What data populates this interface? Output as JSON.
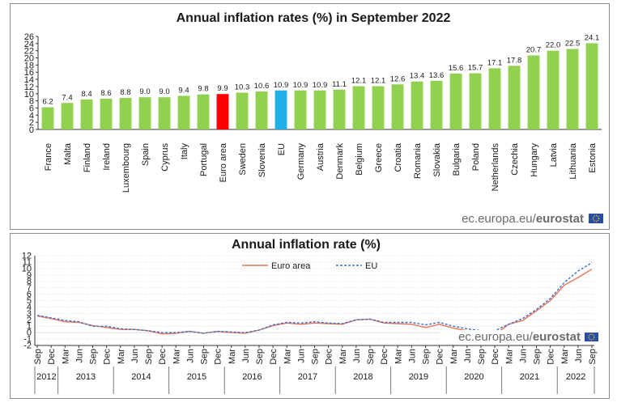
{
  "brand": {
    "source_host": "ec.europa.eu/",
    "source_name": "eurostat"
  },
  "colors": {
    "bar_default": "#92d050",
    "bar_euro_area": "#ff0000",
    "bar_eu": "#1fb0e6",
    "line_euro_area": "#e8735a",
    "line_eu": "#3f6fc4"
  },
  "chart_data": [
    {
      "type": "bar",
      "title": "Annual inflation rates (%) in  September 2022",
      "ylim": [
        0,
        26
      ],
      "yticks": [
        0,
        2,
        4,
        6,
        8,
        10,
        12,
        14,
        16,
        18,
        20,
        22,
        24,
        26
      ],
      "categories": [
        "France",
        "Malta",
        "Finland",
        "Ireland",
        "Luxembourg",
        "Spain",
        "Cyprus",
        "Italy",
        "Portugal",
        "Euro area",
        "Sweden",
        "Slovenia",
        "EU",
        "Germany",
        "Austria",
        "Denmark",
        "Belgium",
        "Greece",
        "Croatia",
        "Romania",
        "Slovakia",
        "Bulgaria",
        "Poland",
        "Netherlands",
        "Czechia",
        "Hungary",
        "Latvia",
        "Lithuania",
        "Estonia"
      ],
      "values": [
        6.2,
        7.4,
        8.4,
        8.6,
        8.8,
        9.0,
        9.0,
        9.4,
        9.8,
        9.9,
        10.3,
        10.6,
        10.9,
        10.9,
        10.9,
        11.1,
        12.1,
        12.1,
        12.6,
        13.4,
        13.6,
        15.6,
        15.7,
        17.1,
        17.8,
        20.7,
        22.0,
        22.5,
        24.1
      ],
      "value_labels": [
        "6.2",
        "7.4",
        "8.4",
        "8.6",
        "8.8",
        "9.0",
        "9.0",
        "9.4",
        "9.8",
        "9.9",
        "10.3",
        "10.6",
        "10.9",
        "10.9",
        "10.9",
        "11.1",
        "12.1",
        "12.1",
        "12.6",
        "13.4",
        "13.6",
        "15.6",
        "15.7",
        "17.1",
        "17.8",
        "20.7",
        "22.0",
        "22.5",
        "24.1"
      ],
      "highlight": {
        "Euro area": "bar_euro_area",
        "EU": "bar_eu"
      }
    },
    {
      "type": "line",
      "title": "Annual  inflation rate (%)",
      "ylim": [
        -2,
        12
      ],
      "yticks": [
        -2,
        -1,
        0,
        1,
        2,
        3,
        4,
        5,
        6,
        7,
        8,
        9,
        10,
        11,
        12
      ],
      "month_labels": [
        "Sep",
        "Dec",
        "Mar",
        "Jun",
        "Sep",
        "Dec",
        "Mar",
        "Jun",
        "Sep",
        "Dec",
        "Mar",
        "Jun",
        "Sep",
        "Dec",
        "Mar",
        "Jun",
        "Sep",
        "Dec",
        "Mar",
        "Jun",
        "Sep",
        "Dec",
        "Mar",
        "Jun",
        "Sep",
        "Dec",
        "Mar",
        "Jun",
        "Sep",
        "Dec",
        "Mar",
        "Jun",
        "Sep",
        "Dec",
        "Mar",
        "Jun",
        "Sep",
        "Dec",
        "Mar",
        "Jun",
        "Sep"
      ],
      "year_labels": [
        "2012",
        "2013",
        "2014",
        "2015",
        "2016",
        "2017",
        "2018",
        "2019",
        "2020",
        "2021",
        "2022"
      ],
      "legend": [
        "Euro area",
        "EU"
      ],
      "series": [
        {
          "name": "Euro area",
          "values": [
            2.6,
            2.2,
            1.7,
            1.6,
            1.1,
            0.8,
            0.5,
            0.5,
            0.3,
            -0.2,
            -0.1,
            0.2,
            -0.1,
            0.2,
            0.0,
            -0.1,
            0.4,
            1.1,
            1.5,
            1.3,
            1.5,
            1.4,
            1.3,
            2.0,
            2.1,
            1.5,
            1.4,
            1.3,
            0.8,
            1.3,
            0.7,
            0.3,
            -0.3,
            -0.3,
            1.3,
            1.9,
            3.4,
            5.0,
            7.4,
            8.6,
            9.9
          ]
        },
        {
          "name": "EU",
          "values": [
            2.7,
            2.3,
            1.9,
            1.7,
            1.0,
            1.0,
            0.6,
            0.5,
            0.3,
            0.0,
            0.0,
            0.2,
            -0.1,
            0.2,
            0.1,
            0.0,
            0.4,
            1.2,
            1.6,
            1.5,
            1.7,
            1.5,
            1.4,
            2.0,
            2.1,
            1.6,
            1.6,
            1.6,
            1.2,
            1.6,
            1.0,
            0.6,
            0.3,
            0.3,
            1.3,
            2.2,
            3.6,
            5.3,
            7.8,
            9.6,
            10.9
          ]
        }
      ]
    }
  ]
}
